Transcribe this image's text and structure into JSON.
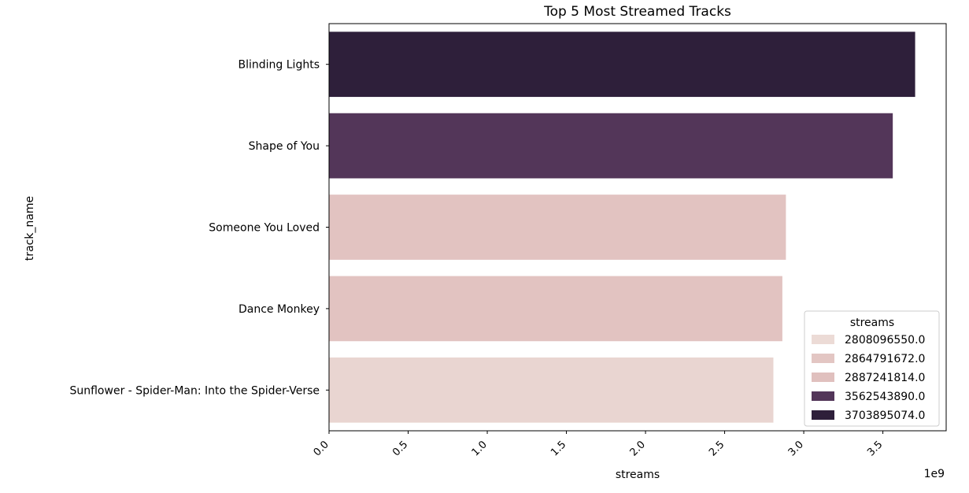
{
  "chart_data": {
    "type": "bar",
    "orientation": "horizontal",
    "title": "Top 5 Most Streamed Tracks",
    "xlabel": "streams",
    "ylabel": "track_name",
    "x_scale_label": "1e9",
    "xlim": [
      0,
      3.9
    ],
    "x_ticks": [
      0.0,
      0.5,
      1.0,
      1.5,
      2.0,
      2.5,
      3.0,
      3.5
    ],
    "x_tick_labels": [
      "0.0",
      "0.5",
      "1.0",
      "1.5",
      "2.0",
      "2.5",
      "3.0",
      "3.5"
    ],
    "categories": [
      "Blinding Lights",
      "Shape of You",
      "Someone You Loved",
      "Dance Monkey",
      "Sunflower - Spider-Man: Into the Spider-Verse"
    ],
    "values": [
      3703895074.0,
      3562543890.0,
      2887241814.0,
      2864791672.0,
      2808096550.0
    ],
    "bar_colors": [
      "#2e1f3a",
      "#533659",
      "#e2c3c1",
      "#e2c3c1",
      "#e9d5d1"
    ],
    "grid": false,
    "legend": {
      "title": "streams",
      "placement": "lower-right",
      "entries": [
        {
          "label": "2808096550.0",
          "color": "#ecdbd6"
        },
        {
          "label": "2864791672.0",
          "color": "#e3c6c3"
        },
        {
          "label": "2887241814.0",
          "color": "#e0c0be"
        },
        {
          "label": "3562543890.0",
          "color": "#533659"
        },
        {
          "label": "3703895074.0",
          "color": "#2e1f3a"
        }
      ]
    }
  }
}
